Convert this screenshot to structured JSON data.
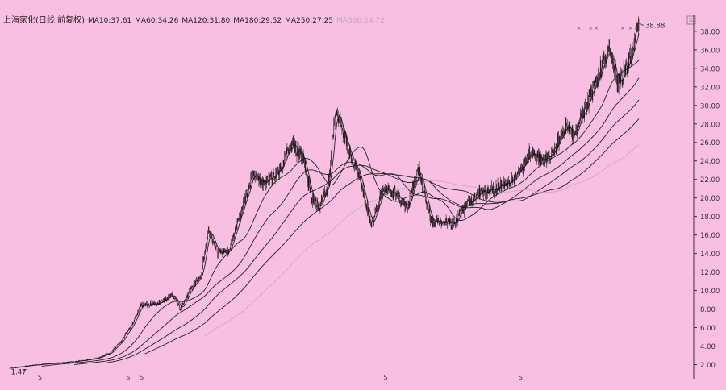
{
  "header": {
    "title": "上海家化(日线 前复权)",
    "ma_labels": [
      {
        "text": "MA10:37.61",
        "color": "#222222"
      },
      {
        "text": "MA60:34.26",
        "color": "#222222"
      },
      {
        "text": "MA120:31.80",
        "color": "#222222"
      },
      {
        "text": "MA180:29.52",
        "color": "#222222"
      },
      {
        "text": "MA250:27.25",
        "color": "#222222"
      },
      {
        "text": "MA360:24.72",
        "color": "#c9a6b8"
      }
    ]
  },
  "corner_icon": "settings-icon",
  "colors": {
    "background": "#f9bfe3",
    "axis": "#333333",
    "candle": "#111111",
    "ma_dark": "#222222",
    "ma_light": "#c9a6b8"
  },
  "chart_data": {
    "type": "line",
    "title": "",
    "xlabel": "",
    "ylabel": "",
    "ylim": [
      0.6,
      39.5
    ],
    "y_ticks": [
      "2.00",
      "4.00",
      "6.00",
      "8.00",
      "10.00",
      "12.00",
      "14.00",
      "16.00",
      "18.00",
      "20.00",
      "22.00",
      "24.00",
      "26.00",
      "28.00",
      "30.00",
      "32.00",
      "34.00",
      "36.00",
      "38.00"
    ],
    "bar_count": 1160,
    "price_path": [
      [
        0,
        1.6
      ],
      [
        25,
        1.9
      ],
      [
        50,
        2.1
      ],
      [
        80,
        2.3
      ],
      [
        110,
        2.7
      ],
      [
        125,
        3.2
      ],
      [
        140,
        4.5
      ],
      [
        155,
        6.5
      ],
      [
        165,
        8.4
      ],
      [
        185,
        8.6
      ],
      [
        205,
        9.5
      ],
      [
        215,
        8.0
      ],
      [
        230,
        10.5
      ],
      [
        240,
        11.5
      ],
      [
        250,
        16.5
      ],
      [
        262,
        14.0
      ],
      [
        275,
        14.2
      ],
      [
        290,
        18.0
      ],
      [
        305,
        22.5
      ],
      [
        320,
        21.5
      ],
      [
        340,
        23.0
      ],
      [
        355,
        26.0
      ],
      [
        370,
        24.0
      ],
      [
        380,
        20.0
      ],
      [
        390,
        19.0
      ],
      [
        402,
        22.0
      ],
      [
        410,
        29.5
      ],
      [
        420,
        27.0
      ],
      [
        430,
        24.0
      ],
      [
        440,
        22.5
      ],
      [
        455,
        17.0
      ],
      [
        470,
        21.0
      ],
      [
        485,
        20.5
      ],
      [
        500,
        19.0
      ],
      [
        515,
        23.0
      ],
      [
        530,
        17.5
      ],
      [
        545,
        17.5
      ],
      [
        560,
        17.3
      ],
      [
        570,
        18.8
      ],
      [
        590,
        20.5
      ],
      [
        610,
        21.0
      ],
      [
        625,
        21.5
      ],
      [
        640,
        22.5
      ],
      [
        655,
        25.0
      ],
      [
        670,
        24.0
      ],
      [
        685,
        25.0
      ],
      [
        700,
        28.0
      ],
      [
        710,
        26.5
      ],
      [
        725,
        30.0
      ],
      [
        740,
        33.0
      ],
      [
        755,
        36.0
      ],
      [
        765,
        32.5
      ],
      [
        775,
        33.5
      ],
      [
        785,
        36.0
      ],
      [
        792,
        38.9
      ]
    ],
    "series": [
      {
        "label": "MA10",
        "color": "#222222",
        "values": [
          [
            0,
            1.6
          ],
          [
            792,
            37.61
          ]
        ]
      },
      {
        "label": "MA60",
        "color": "#222222",
        "values": [
          [
            0,
            1.6
          ],
          [
            792,
            34.26
          ]
        ]
      },
      {
        "label": "MA120",
        "color": "#222222",
        "values": [
          [
            0,
            1.6
          ],
          [
            792,
            31.8
          ]
        ]
      },
      {
        "label": "MA180",
        "color": "#222222",
        "values": [
          [
            0,
            1.6
          ],
          [
            792,
            29.52
          ]
        ]
      },
      {
        "label": "MA250",
        "color": "#222222",
        "values": [
          [
            0,
            1.6
          ],
          [
            792,
            27.25
          ]
        ]
      },
      {
        "label": "MA360",
        "color": "#c9a6b8",
        "values": [
          [
            0,
            1.6
          ],
          [
            792,
            24.72
          ]
        ]
      }
    ],
    "annotations": [
      {
        "text": "38.88",
        "x": 792,
        "y": 38.88
      },
      {
        "text": "1.47",
        "x": 22,
        "y": 1.47
      }
    ],
    "markers": {
      "text": "S",
      "x": [
        38,
        149,
        166,
        473,
        643
      ]
    },
    "top_markers": {
      "text": "×",
      "x": [
        716,
        731,
        738,
        771,
        781,
        788
      ]
    }
  }
}
